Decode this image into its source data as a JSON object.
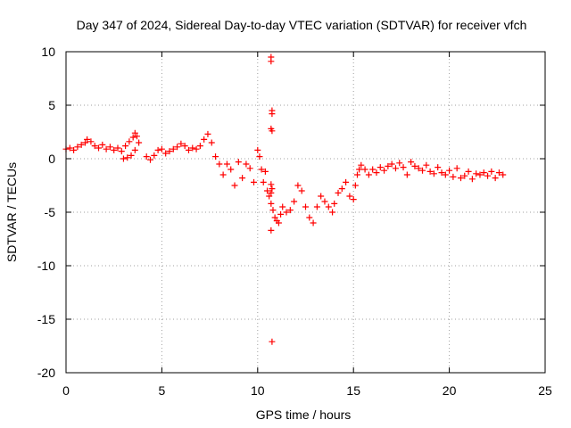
{
  "chart_data": {
    "type": "scatter",
    "title": "Day 347 of 2024, Sidereal Day-to-day VTEC variation (SDTVAR) for receiver vfch",
    "xlabel": "GPS time / hours",
    "ylabel": "SDTVAR / TECUs",
    "xlim": [
      0,
      25
    ],
    "ylim": [
      -20,
      10
    ],
    "xticks": [
      0,
      5,
      10,
      15,
      20,
      25
    ],
    "yticks": [
      -20,
      -15,
      -10,
      -5,
      0,
      5,
      10
    ],
    "xtick_labels": [
      "0",
      "5",
      "10",
      "15",
      "20",
      "25"
    ],
    "ytick_labels": [
      "-20",
      "-15",
      "-10",
      "-5",
      "0",
      "5",
      "10"
    ],
    "grid": true,
    "marker": "+",
    "series": [
      {
        "name": "vfch",
        "color": "#ff0000",
        "x": [
          0.0,
          0.2,
          0.4,
          0.6,
          0.8,
          1.0,
          1.1,
          1.3,
          1.5,
          1.7,
          1.9,
          2.1,
          2.3,
          2.5,
          2.7,
          2.9,
          3.1,
          3.3,
          3.5,
          3.6,
          3.7,
          3.8,
          3.6,
          3.4,
          3.2,
          3.0,
          4.2,
          4.4,
          4.6,
          4.8,
          5.0,
          5.2,
          5.4,
          5.6,
          5.8,
          6.0,
          6.2,
          6.4,
          6.6,
          6.8,
          7.0,
          7.2,
          7.4,
          7.6,
          7.8,
          8.0,
          8.2,
          8.4,
          8.6,
          8.8,
          9.0,
          9.2,
          9.4,
          9.6,
          9.8,
          10.0,
          10.1,
          10.2,
          10.3,
          10.4,
          10.5,
          10.6,
          10.7,
          10.8,
          10.9,
          11.0,
          11.1,
          11.2,
          11.3,
          11.5,
          11.7,
          11.9,
          12.1,
          12.3,
          12.5,
          12.7,
          12.9,
          13.1,
          13.3,
          13.5,
          13.7,
          13.9,
          14.0,
          14.2,
          14.4,
          14.6,
          14.8,
          15.0,
          15.1,
          15.2,
          15.3,
          15.4,
          15.6,
          15.8,
          16.0,
          16.2,
          16.4,
          16.6,
          16.8,
          17.0,
          17.2,
          17.4,
          17.6,
          17.8,
          18.0,
          18.2,
          18.4,
          18.6,
          18.8,
          19.0,
          19.2,
          19.4,
          19.6,
          19.8,
          20.0,
          20.2,
          20.4,
          20.6,
          20.8,
          21.0,
          21.2,
          21.4,
          21.6,
          21.8,
          22.0,
          22.2,
          22.4,
          22.6,
          22.8,
          10.7,
          10.7,
          10.75,
          10.75,
          10.7,
          10.75,
          10.7,
          10.75,
          10.7,
          10.75,
          10.7
        ],
        "y": [
          0.9,
          1.0,
          0.8,
          1.1,
          1.3,
          1.5,
          1.8,
          1.6,
          1.2,
          1.0,
          1.3,
          0.9,
          1.1,
          0.8,
          1.0,
          0.7,
          1.2,
          1.6,
          2.0,
          2.4,
          2.1,
          1.5,
          0.8,
          0.3,
          0.1,
          0.0,
          0.2,
          -0.1,
          0.3,
          0.8,
          0.9,
          0.5,
          0.7,
          0.9,
          1.1,
          1.4,
          1.2,
          0.8,
          1.0,
          0.9,
          1.2,
          1.8,
          2.3,
          1.5,
          0.2,
          -0.5,
          -1.5,
          -0.5,
          -1.0,
          -2.5,
          -0.3,
          -1.8,
          -0.5,
          -0.9,
          -2.2,
          0.8,
          0.2,
          -1.0,
          -2.2,
          -1.2,
          -3.0,
          -3.5,
          -4.2,
          -4.8,
          -5.5,
          -5.8,
          -6.0,
          -5.2,
          -4.5,
          -5.0,
          -4.8,
          -4.0,
          -2.5,
          -3.0,
          -4.5,
          -5.5,
          -6.0,
          -4.5,
          -3.5,
          -4.0,
          -4.5,
          -5.0,
          -4.2,
          -3.2,
          -2.8,
          -2.2,
          -3.5,
          -3.8,
          -2.5,
          -1.5,
          -1.0,
          -0.6,
          -1.0,
          -1.5,
          -1.0,
          -1.3,
          -0.8,
          -1.1,
          -0.7,
          -0.5,
          -0.9,
          -0.4,
          -0.8,
          -1.5,
          -0.3,
          -0.7,
          -0.9,
          -1.1,
          -0.6,
          -1.2,
          -1.4,
          -0.8,
          -1.3,
          -1.5,
          -1.1,
          -1.7,
          -0.9,
          -1.8,
          -1.6,
          -1.2,
          -1.9,
          -1.4,
          -1.5,
          -1.3,
          -1.6,
          -1.2,
          -1.8,
          -1.3,
          -1.5,
          9.5,
          9.1,
          4.5,
          4.2,
          2.8,
          2.6,
          -6.7,
          -17.1,
          -2.4,
          -2.8,
          -3.2
        ]
      }
    ]
  }
}
